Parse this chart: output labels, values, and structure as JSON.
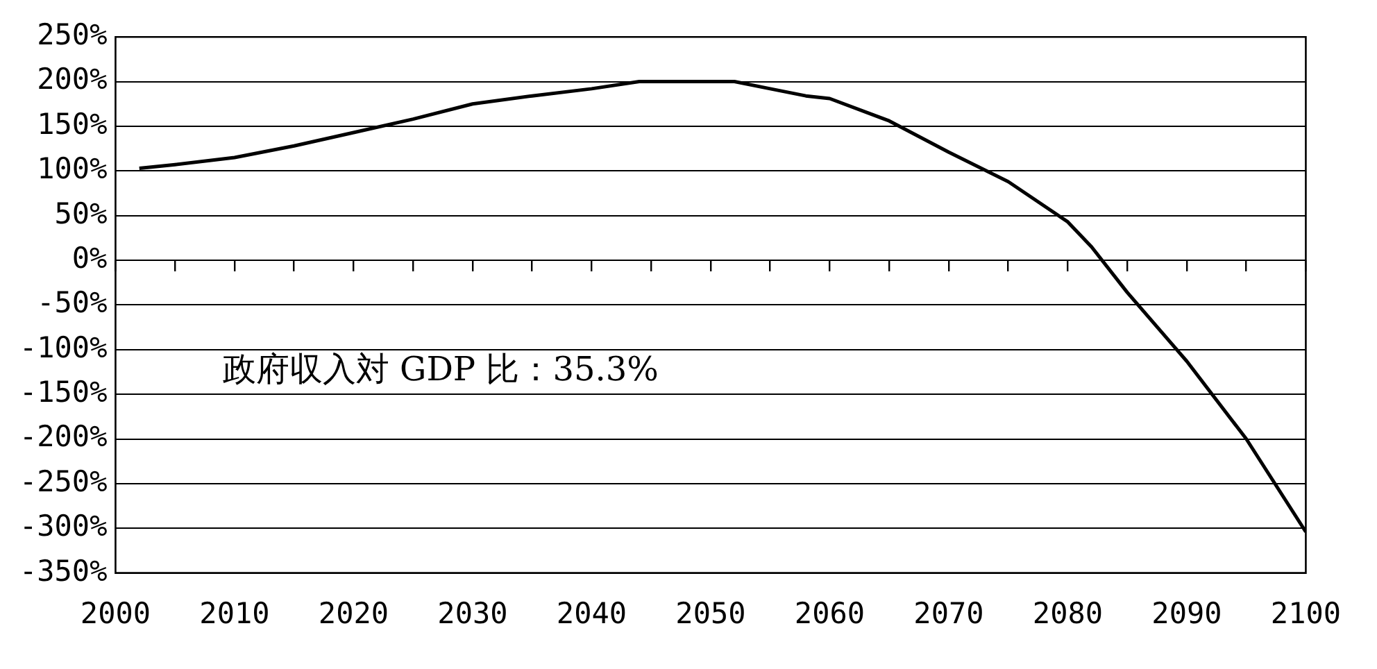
{
  "chart_data": {
    "type": "line",
    "x": [
      2002,
      2005,
      2010,
      2015,
      2020,
      2025,
      2030,
      2035,
      2040,
      2044,
      2052,
      2055,
      2058,
      2060,
      2065,
      2070,
      2075,
      2080,
      2082,
      2085,
      2090,
      2095,
      2100
    ],
    "series": [
      {
        "color": "#000000",
        "values": [
          103,
          107,
          115,
          128,
          143,
          158,
          175,
          184,
          192,
          200,
          200,
          192,
          184,
          181,
          156,
          121,
          88,
          43,
          15,
          -36,
          -113,
          -200,
          -304
        ]
      }
    ],
    "xlim": [
      2000,
      2100
    ],
    "xticks": [
      2000,
      {
        "value": 2005,
        "label": null
      },
      2010,
      {
        "value": 2015,
        "label": null
      },
      2020,
      {
        "value": 2025,
        "label": null
      },
      2030,
      {
        "value": 2035,
        "label": null
      },
      2040,
      {
        "value": 2045,
        "label": null
      },
      2050,
      {
        "value": 2055,
        "label": null
      },
      2060,
      {
        "value": 2065,
        "label": null
      },
      2070,
      {
        "value": 2075,
        "label": null
      },
      2080,
      {
        "value": 2085,
        "label": null
      },
      2090,
      {
        "value": 2095,
        "label": null
      },
      2100
    ],
    "ylim": [
      -350,
      250
    ],
    "yticks": [
      {
        "value": -350,
        "label": "-350%"
      },
      {
        "value": -300,
        "label": "-300%"
      },
      {
        "value": -250,
        "label": "-250%"
      },
      {
        "value": -200,
        "label": "-200%"
      },
      {
        "value": -150,
        "label": "-150%"
      },
      {
        "value": -100,
        "label": "-100%"
      },
      {
        "value": -50,
        "label": "-50%"
      },
      {
        "value": 0,
        "label": "0%"
      },
      {
        "value": 50,
        "label": "50%"
      },
      {
        "value": 100,
        "label": "100%"
      },
      {
        "value": 150,
        "label": "150%"
      },
      {
        "value": 200,
        "label": "200%"
      },
      {
        "value": 250,
        "label": "250%"
      }
    ],
    "grid": "y",
    "legend": false,
    "marker": "none",
    "line_style": "solid",
    "annotations": [
      "政府収入対 GDP 比：35.3%"
    ]
  }
}
